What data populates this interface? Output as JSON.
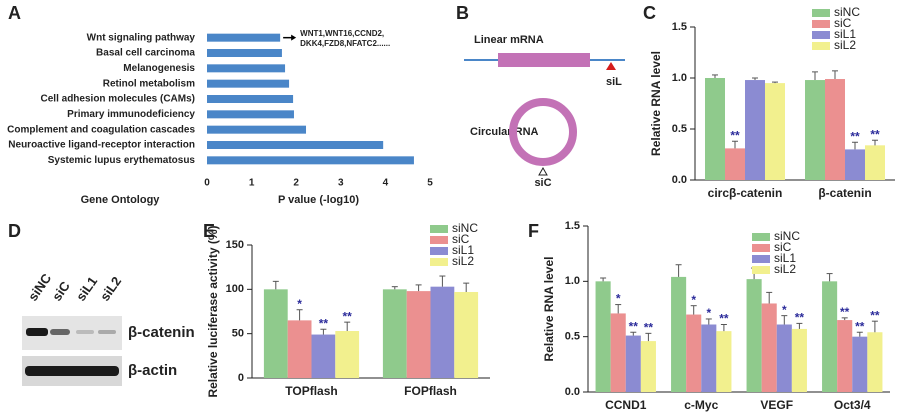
{
  "panel_labels": [
    "A",
    "B",
    "C",
    "D",
    "E",
    "F"
  ],
  "diagram_b": {
    "linear_label": "Linear mRNA",
    "circular_label": "Circular RNA",
    "linear_site": "siL",
    "circular_site": "siC"
  },
  "blot_d": {
    "lanes": [
      "siNC",
      "siC",
      "siL1",
      "siL2"
    ],
    "bands": [
      "β-catenin",
      "β-actin"
    ]
  },
  "chart_data": [
    {
      "type": "bar",
      "horizontal": true,
      "color": "#4a86c8",
      "categories": [
        "Wnt signaling pathway",
        "Basal cell carcinoma",
        "Melanogenesis",
        "Retinol metabolism",
        "Cell adhesion molecules (CAMs)",
        "Primary immunodeficiency",
        "Complement and coagulation cascades",
        "Neuroactive ligand-receptor interaction",
        "Systemic lupus erythematosus"
      ],
      "values": [
        1.64,
        1.68,
        1.75,
        1.84,
        1.93,
        1.95,
        2.22,
        3.95,
        4.64
      ],
      "xlim": [
        0,
        5
      ],
      "xticks": [
        0,
        1,
        2,
        3,
        4,
        5
      ],
      "xlabel": "P value (-log10)",
      "category_label": "Gene Ontology",
      "annotation": [
        "WNT1,WNT16,CCND2,",
        "DKK4,FZD8,NFATC2......"
      ]
    },
    {
      "type": "bar",
      "ylabel": "Relative RNA level",
      "categories": [
        "circβ-catenin",
        "β-catenin"
      ],
      "ylim": [
        0,
        1.5
      ],
      "yticks": [
        {
          "value": 0,
          "label": "0.0"
        },
        0.5,
        {
          "value": 1,
          "label": "1.0"
        },
        1.5
      ],
      "series": [
        {
          "name": "siNC",
          "color": "#8fca8c",
          "values": [
            1.0,
            0.98
          ],
          "errors": [
            0.03,
            0.08
          ],
          "sig": [
            null,
            null
          ]
        },
        {
          "name": "siC",
          "color": "#eb9090",
          "values": [
            0.31,
            0.99
          ],
          "errors": [
            0.07,
            0.08
          ],
          "sig": [
            "**",
            null
          ]
        },
        {
          "name": "siL1",
          "color": "#8b8bd2",
          "values": [
            0.98,
            0.3
          ],
          "errors": [
            0.02,
            0.07
          ],
          "sig": [
            null,
            "**"
          ]
        },
        {
          "name": "siL2",
          "color": "#f2f08e",
          "values": [
            0.95,
            0.34
          ],
          "errors": [
            0.01,
            0.05
          ],
          "sig": [
            null,
            "**"
          ]
        }
      ]
    },
    {
      "type": "bar",
      "ylabel": "Relative luciferase activity (%)",
      "categories": [
        "TOPflash",
        "FOPflash"
      ],
      "ylim": [
        0,
        150
      ],
      "yticks": [
        0,
        50,
        100,
        150
      ],
      "series": [
        {
          "name": "siNC",
          "color": "#8fca8c",
          "values": [
            100,
            100
          ],
          "errors": [
            9,
            3
          ],
          "sig": [
            null,
            null
          ]
        },
        {
          "name": "siC",
          "color": "#eb9090",
          "values": [
            65,
            98
          ],
          "errors": [
            12,
            7
          ],
          "sig": [
            "*",
            null
          ]
        },
        {
          "name": "siL1",
          "color": "#8b8bd2",
          "values": [
            49,
            103
          ],
          "errors": [
            6,
            12
          ],
          "sig": [
            "**",
            null
          ]
        },
        {
          "name": "siL2",
          "color": "#f2f08e",
          "values": [
            53,
            97
          ],
          "errors": [
            10,
            10
          ],
          "sig": [
            "**",
            null
          ]
        }
      ]
    },
    {
      "type": "bar",
      "ylabel": "Relative RNA level",
      "categories": [
        "CCND1",
        "c-Myc",
        "VEGF",
        "Oct3/4"
      ],
      "ylim": [
        0,
        1.5
      ],
      "yticks": [
        {
          "value": 0,
          "label": "0.0"
        },
        0.5,
        {
          "value": 1,
          "label": "1.0"
        },
        1.5
      ],
      "series": [
        {
          "name": "siNC",
          "color": "#8fca8c",
          "values": [
            1.0,
            1.04,
            1.02,
            1.0
          ],
          "errors": [
            0.03,
            0.11,
            0.1,
            0.07
          ],
          "sig": [
            null,
            null,
            null,
            null
          ]
        },
        {
          "name": "siC",
          "color": "#eb9090",
          "values": [
            0.71,
            0.7,
            0.8,
            0.65
          ],
          "errors": [
            0.08,
            0.08,
            0.1,
            0.02
          ],
          "sig": [
            "*",
            "*",
            null,
            "**"
          ]
        },
        {
          "name": "siL1",
          "color": "#8b8bd2",
          "values": [
            0.51,
            0.61,
            0.61,
            0.5
          ],
          "errors": [
            0.03,
            0.05,
            0.08,
            0.04
          ],
          "sig": [
            "**",
            "*",
            "*",
            "**"
          ]
        },
        {
          "name": "siL2",
          "color": "#f2f08e",
          "values": [
            0.46,
            0.55,
            0.57,
            0.54
          ],
          "errors": [
            0.07,
            0.06,
            0.05,
            0.1
          ],
          "sig": [
            "**",
            "**",
            "**",
            "**"
          ]
        }
      ]
    }
  ]
}
